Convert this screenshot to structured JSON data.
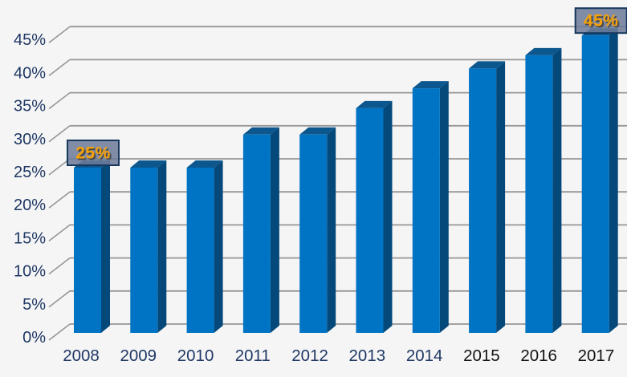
{
  "chart_data": {
    "type": "bar",
    "title": "",
    "xlabel": "",
    "ylabel": "",
    "categories": [
      "2008",
      "2009",
      "2010",
      "2011",
      "2012",
      "2013",
      "2014",
      "2015",
      "2016",
      "2017"
    ],
    "values": [
      25,
      25,
      25,
      30,
      30,
      34,
      37,
      40,
      42,
      45
    ],
    "y_tick_labels": [
      "0%",
      "5%",
      "10%",
      "15%",
      "20%",
      "25%",
      "30%",
      "35%",
      "40%",
      "45%"
    ],
    "ylim": [
      0,
      45
    ],
    "y_step": 5,
    "grid": "horizontal-3d",
    "legend": "none",
    "style": "3d-effect-bars",
    "annotations": [
      {
        "category": "2008",
        "index": 0,
        "label": "25%"
      },
      {
        "category": "2017",
        "index": 9,
        "label": "45%"
      }
    ],
    "colors": {
      "background": "#f5f5f5",
      "gridline": "#969696",
      "axis_text": "#1f3864",
      "bar_front": "#0074c4",
      "bar_side": "#05497a",
      "bar_top": "#0b578e",
      "callout_fill": "#6e7c99",
      "callout_border": "#17375e",
      "callout_text": "#f8a105",
      "callout_text_shadow": "#4a4a4a"
    },
    "category_label_colors": [
      "#1f3864",
      "#1f3864",
      "#1f3864",
      "#1f3864",
      "#1f3864",
      "#1f3864",
      "#1f3864",
      "#141414",
      "#141414",
      "#141414"
    ]
  }
}
